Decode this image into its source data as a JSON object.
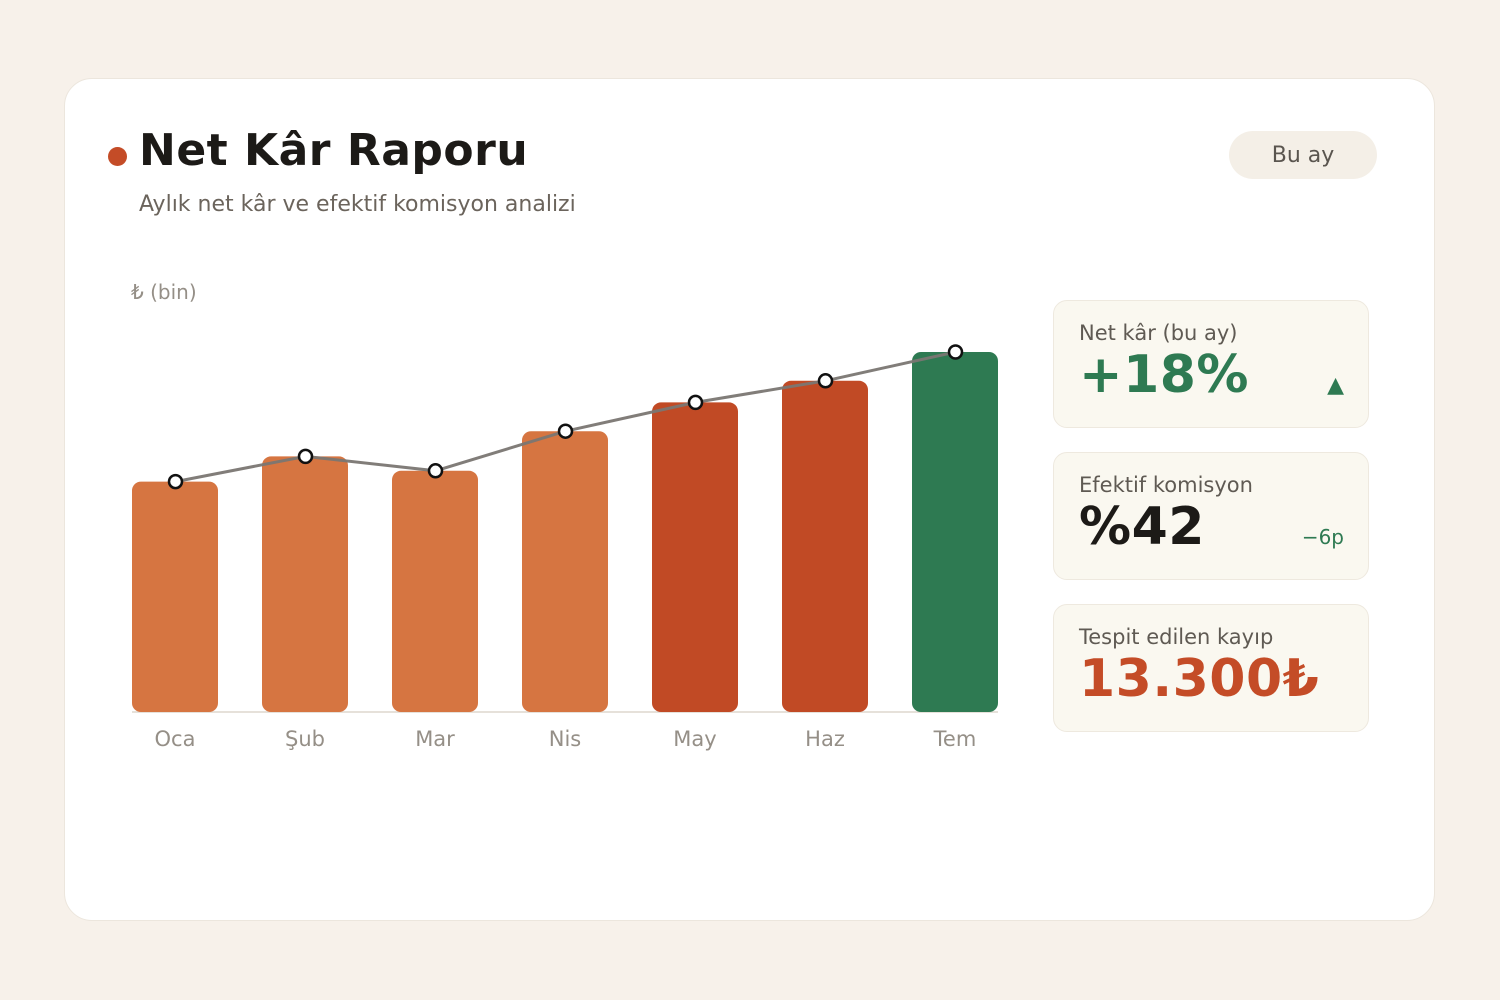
{
  "header": {
    "title": "Net Kâr Raporu",
    "subtitle": "Aylık net kâr ve efektif komisyon analizi",
    "period_button": "Bu ay"
  },
  "colors": {
    "accent": "#c44c27",
    "bar_light": "#d67541",
    "bar_dark": "#c14a25",
    "bar_current": "#2e7a52",
    "line": "#7a7672"
  },
  "chart_data": {
    "type": "bar",
    "ylabel": "₺ (bin)",
    "categories": [
      "Oca",
      "Şub",
      "Mar",
      "Nis",
      "May",
      "Haz",
      "Tem"
    ],
    "series": [
      {
        "values": [
          64,
          71,
          67,
          78,
          86,
          92,
          100
        ]
      }
    ],
    "line_values": [
      64,
      71,
      67,
      78,
      86,
      92,
      100
    ],
    "bar_color_keys": [
      "bar_light",
      "bar_light",
      "bar_light",
      "bar_light",
      "bar_dark",
      "bar_dark",
      "bar_current"
    ],
    "ylim": [
      0,
      100
    ],
    "grid": false,
    "legend": "none"
  },
  "kpis": [
    {
      "label": "Net kâr (bu ay)",
      "value": "+18%",
      "aux": "▲",
      "color": "green"
    },
    {
      "label": "Efektif komisyon",
      "value": "%42",
      "aux": "−6p",
      "color": "dark"
    },
    {
      "label": "Tespit edilen kayıp",
      "value": "13.300₺",
      "aux": "",
      "color": "red"
    }
  ]
}
